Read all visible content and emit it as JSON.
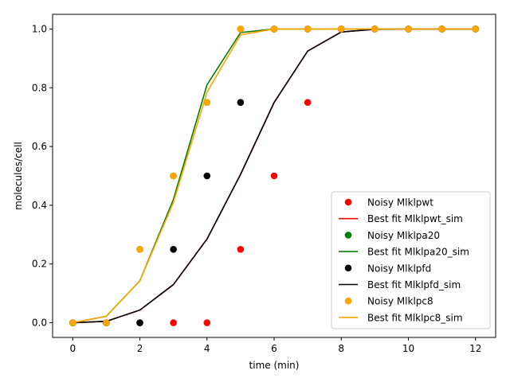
{
  "chart_data": {
    "type": "scatter",
    "title": "",
    "xlabel": "time (min)",
    "ylabel": "molecules/cell",
    "xlim": [
      -0.6,
      12.6
    ],
    "ylim": [
      -0.05,
      1.05
    ],
    "xticks": [
      0,
      2,
      4,
      6,
      8,
      10,
      12
    ],
    "yticks": [
      0.0,
      0.2,
      0.4,
      0.6,
      0.8,
      1.0
    ],
    "xtick_labels": [
      "0",
      "2",
      "4",
      "6",
      "8",
      "10",
      "12"
    ],
    "ytick_labels": [
      "0.0",
      "0.2",
      "0.4",
      "0.6",
      "0.8",
      "1.0"
    ],
    "grid": false,
    "legend_position": "lower-right",
    "x": [
      0,
      1,
      2,
      3,
      4,
      5,
      6,
      7,
      8,
      9,
      10,
      11,
      12
    ],
    "series": [
      {
        "name": "Noisy Mlklpwt",
        "kind": "points",
        "color": "#ff0000",
        "values": [
          0,
          0,
          0,
          0,
          0,
          0.25,
          0.5,
          0.75,
          1,
          1,
          1,
          1,
          1
        ]
      },
      {
        "name": "Best fit Mlklpwt_sim",
        "kind": "line",
        "color": "#ff0000",
        "values": [
          0,
          0.005,
          0.043,
          0.13,
          0.285,
          0.505,
          0.75,
          0.925,
          0.99,
          0.999,
          1,
          1,
          1
        ]
      },
      {
        "name": "Noisy Mlklpa20",
        "kind": "points",
        "color": "#008000",
        "values": [
          0,
          0,
          0.25,
          0.5,
          0.75,
          1,
          1,
          1,
          1,
          1,
          1,
          1,
          1
        ]
      },
      {
        "name": "Best fit Mlklpa20_sim",
        "kind": "line",
        "color": "#008000",
        "values": [
          0,
          0.022,
          0.143,
          0.42,
          0.81,
          0.988,
          1,
          1,
          1,
          1,
          1,
          1,
          1
        ]
      },
      {
        "name": "Noisy Mlklpfd",
        "kind": "points",
        "color": "#000000",
        "values": [
          0,
          0,
          0,
          0.25,
          0.5,
          0.75,
          1,
          1,
          1,
          1,
          1,
          1,
          1
        ]
      },
      {
        "name": "Best fit Mlklpfd_sim",
        "kind": "line",
        "color": "#000000",
        "values": [
          0,
          0.005,
          0.043,
          0.13,
          0.285,
          0.505,
          0.75,
          0.925,
          0.99,
          0.999,
          1,
          1,
          1
        ]
      },
      {
        "name": "Noisy Mlklpc8",
        "kind": "points",
        "color": "#ffa500",
        "values": [
          0,
          0,
          0.25,
          0.5,
          0.75,
          1,
          1,
          1,
          1,
          1,
          1,
          1,
          1
        ]
      },
      {
        "name": "Best fit Mlklpc8_sim",
        "kind": "line",
        "color": "#ffa500",
        "values": [
          0,
          0.022,
          0.143,
          0.41,
          0.785,
          0.98,
          1,
          1,
          1,
          1,
          1,
          1,
          1
        ]
      }
    ]
  }
}
